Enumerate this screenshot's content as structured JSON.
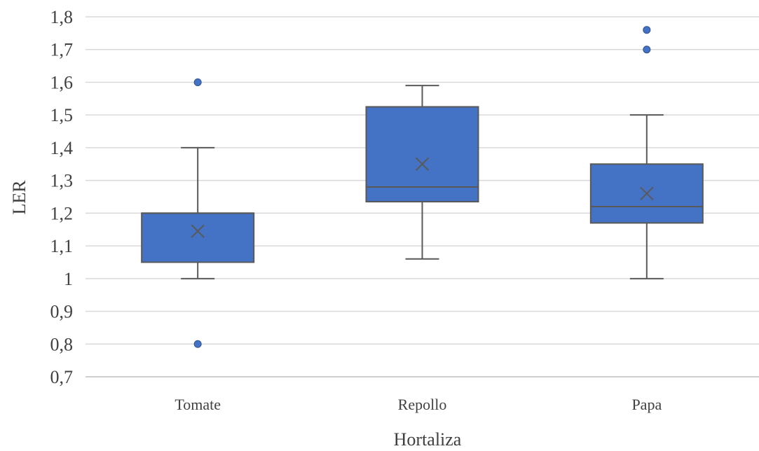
{
  "chart_data": {
    "type": "box",
    "title": "",
    "xlabel": "Hortaliza",
    "ylabel": "LER",
    "ylim": [
      0.7,
      1.8
    ],
    "yticks": [
      "0,7",
      "0,8",
      "0,9",
      "1",
      "1,1",
      "1,2",
      "1,3",
      "1,4",
      "1,5",
      "1,6",
      "1,7",
      "1,8"
    ],
    "ytick_values": [
      0.7,
      0.8,
      0.9,
      1.0,
      1.1,
      1.2,
      1.3,
      1.4,
      1.5,
      1.6,
      1.7,
      1.8
    ],
    "grid": true,
    "legend": "none",
    "color": "#4472C4",
    "categories": [
      "Tomate",
      "Repollo",
      "Papa"
    ],
    "boxes": [
      {
        "category": "Tomate",
        "min": 1.0,
        "q1": 1.05,
        "median": 1.2,
        "q3": 1.2,
        "max": 1.4,
        "mean": 1.145,
        "outliers": [
          1.6,
          0.8
        ]
      },
      {
        "category": "Repollo",
        "min": 1.06,
        "q1": 1.235,
        "median": 1.28,
        "q3": 1.525,
        "max": 1.59,
        "mean": 1.35,
        "outliers": []
      },
      {
        "category": "Papa",
        "min": 1.0,
        "q1": 1.17,
        "median": 1.22,
        "q3": 1.35,
        "max": 1.5,
        "mean": 1.26,
        "outliers": [
          1.76,
          1.7
        ]
      }
    ]
  }
}
